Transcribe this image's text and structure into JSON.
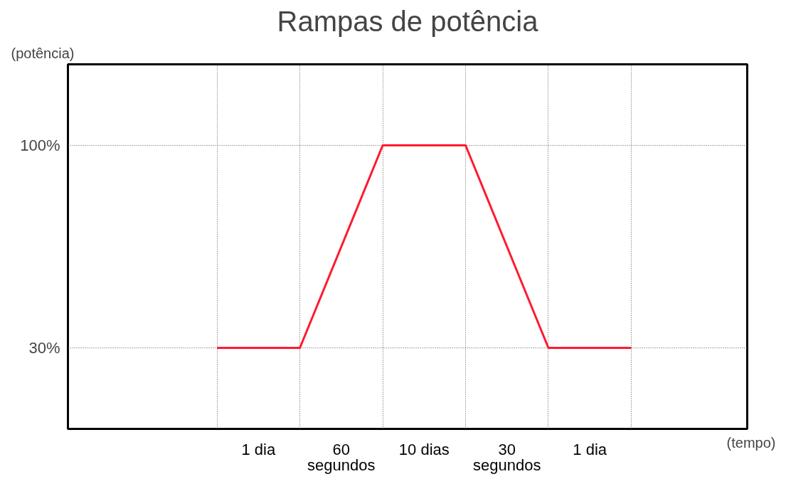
{
  "chart_data": {
    "type": "line",
    "title": "Rampas de potência",
    "xlabel": "(tempo)",
    "ylabel": "(potência)",
    "categories": [
      null,
      null,
      null,
      null,
      null,
      null
    ],
    "series": [
      {
        "color": "#ff1a2e",
        "values": [
          30,
          30,
          100,
          100,
          30,
          30
        ]
      }
    ],
    "ylim": [
      2,
      128
    ],
    "yticks": [
      {
        "value": 30,
        "label": "30%"
      },
      {
        "value": 100,
        "label": "100%"
      }
    ],
    "grid": true,
    "marker": "none",
    "line_style": "solid",
    "tick_labels": "y",
    "annotations": [
      "1 dia",
      "60\nsegundos",
      "10 dias",
      "30\nsegundos",
      "1 dia"
    ]
  }
}
